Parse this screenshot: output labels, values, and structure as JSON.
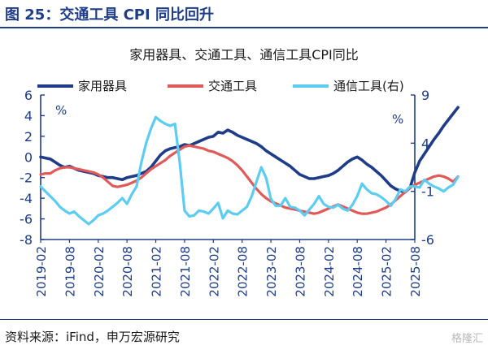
{
  "figure_title": "图 25：交通工具 CPI 同比回升",
  "source": "资料来源：iFind，申万宏源研究",
  "watermark": "格隆汇",
  "chart_data": {
    "type": "line",
    "title": "家用器具、交通工具、通信工具CPI同比",
    "left_unit": "%",
    "right_unit": "%",
    "left_axis": {
      "ticks": [
        6,
        4,
        2,
        0,
        -2,
        -4,
        -6,
        -8
      ],
      "ylim": [
        -8,
        6
      ]
    },
    "right_axis": {
      "ticks": [
        9,
        4,
        -1,
        -6
      ],
      "ylim": [
        -6,
        9
      ]
    },
    "x_tick_labels": [
      "2019-02",
      "2019-08",
      "2020-02",
      "2020-08",
      "2021-02",
      "2021-08",
      "2022-02",
      "2022-08",
      "2023-02",
      "2023-08",
      "2024-02",
      "2024-08",
      "2025-02",
      "2025-08"
    ],
    "x_start": "2019-02",
    "legend_position": "top",
    "grid": false,
    "series": [
      {
        "name": "家用器具",
        "axis": "left",
        "color": "#1f3c88",
        "values": [
          0.0,
          -0.1,
          -0.2,
          -0.5,
          -0.8,
          -1.0,
          -0.9,
          -1.1,
          -1.3,
          -1.4,
          -1.5,
          -1.6,
          -1.8,
          -1.9,
          -2.0,
          -2.0,
          -2.1,
          -2.2,
          -2.0,
          -1.9,
          -1.8,
          -1.6,
          -1.4,
          -1.0,
          -0.4,
          0.2,
          0.6,
          0.8,
          0.9,
          1.0,
          1.2,
          1.1,
          1.3,
          1.5,
          1.7,
          1.9,
          2.0,
          2.4,
          2.3,
          2.6,
          2.4,
          2.1,
          1.9,
          1.7,
          1.5,
          1.3,
          1.0,
          0.6,
          0.3,
          0.0,
          -0.3,
          -0.6,
          -0.9,
          -1.3,
          -1.7,
          -1.9,
          -2.1,
          -2.1,
          -2.0,
          -1.9,
          -1.8,
          -1.6,
          -1.3,
          -0.9,
          -0.5,
          -0.2,
          0.0,
          -0.3,
          -0.7,
          -1.0,
          -1.4,
          -1.8,
          -2.3,
          -2.8,
          -3.1,
          -3.3,
          -3.4,
          -3.0,
          -1.5,
          -0.4,
          0.3,
          1.0,
          1.7,
          2.3,
          3.0,
          3.6,
          4.2,
          4.8
        ]
      },
      {
        "name": "交通工具",
        "axis": "left",
        "color": "#e05a5a",
        "values": [
          -1.7,
          -1.6,
          -1.6,
          -1.3,
          -1.1,
          -1.0,
          -1.0,
          -1.1,
          -1.2,
          -1.3,
          -1.4,
          -1.5,
          -1.7,
          -2.0,
          -2.4,
          -2.8,
          -2.9,
          -2.8,
          -2.7,
          -2.5,
          -2.3,
          -2.0,
          -1.6,
          -1.2,
          -0.9,
          -0.6,
          -0.3,
          0.1,
          0.4,
          0.7,
          1.0,
          1.1,
          1.0,
          0.9,
          0.8,
          0.6,
          0.5,
          0.3,
          0.1,
          -0.1,
          -0.4,
          -0.8,
          -1.3,
          -1.9,
          -2.5,
          -3.1,
          -3.6,
          -4.0,
          -4.3,
          -4.5,
          -4.7,
          -4.9,
          -5.0,
          -5.1,
          -5.2,
          -5.3,
          -5.4,
          -5.5,
          -5.4,
          -5.2,
          -5.0,
          -4.8,
          -4.6,
          -4.8,
          -5.0,
          -5.2,
          -5.4,
          -5.5,
          -5.5,
          -5.4,
          -5.3,
          -5.1,
          -4.9,
          -4.6,
          -4.2,
          -3.8,
          -3.4,
          -3.0,
          -2.7,
          -2.5,
          -2.3,
          -2.1,
          -1.9,
          -1.8,
          -1.9,
          -2.1,
          -2.4,
          -1.9
        ]
      },
      {
        "name": "通信工具(右)",
        "axis": "right",
        "color": "#5ccdf0",
        "values": [
          -0.5,
          -1.0,
          -1.5,
          -2.0,
          -2.6,
          -3.0,
          -3.3,
          -3.1,
          -3.6,
          -4.0,
          -4.4,
          -4.0,
          -3.5,
          -3.3,
          -3.0,
          -2.6,
          -2.2,
          -1.7,
          -2.3,
          -1.3,
          -0.5,
          2.0,
          4.0,
          5.5,
          6.7,
          6.3,
          6.0,
          5.8,
          6.0,
          2.0,
          -3.0,
          -3.6,
          -3.5,
          -3.0,
          -3.1,
          -3.3,
          -2.8,
          -2.2,
          -3.8,
          -3.0,
          -3.3,
          -3.4,
          -3.0,
          -2.6,
          -1.5,
          0.0,
          1.5,
          0.4,
          -1.8,
          -2.5,
          -2.5,
          -1.7,
          -2.6,
          -2.7,
          -3.0,
          -3.5,
          -2.9,
          -2.3,
          -1.5,
          -2.3,
          -2.6,
          -2.7,
          -2.4,
          -2.8,
          -3.0,
          -2.4,
          -1.5,
          -0.2,
          -0.8,
          -1.2,
          -1.3,
          -1.6,
          -2.0,
          -2.5,
          -1.8,
          -0.8,
          -1.0,
          -0.5,
          -0.5,
          -0.6,
          0.2,
          -0.2,
          -0.5,
          -0.7,
          -1.0,
          -0.6,
          -0.3,
          0.5
        ]
      }
    ]
  }
}
